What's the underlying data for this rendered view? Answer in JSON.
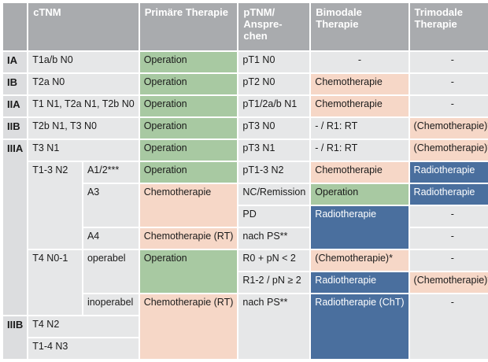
{
  "header": {
    "stage": "",
    "ctnm": "cTNM",
    "primary": "Primäre Therapie",
    "ptnm": "pTNM/ Anspre- chen",
    "bimodal": "Bimodale Therapie",
    "trimodal": "Trimodale Therapie"
  },
  "rows": {
    "ia": {
      "stage": "IA",
      "ctnm": "T1a/b N0",
      "primary": "Operation",
      "ptnm": "pT1 N0",
      "bimodal": "-",
      "trimodal": "-"
    },
    "ib": {
      "stage": "IB",
      "ctnm": "T2a N0",
      "primary": "Operation",
      "ptnm": "pT2 N0",
      "bimodal": "Chemotherapie",
      "trimodal": "-"
    },
    "iia": {
      "stage": "IIA",
      "ctnm": "T1 N1, T2a N1, T2b N0",
      "primary": "Operation",
      "ptnm": "pT1/2a/b N1",
      "bimodal": "Chemotherapie",
      "trimodal": "-"
    },
    "iib": {
      "stage": "IIB",
      "ctnm": "T2b N1, T3 N0",
      "primary": "Operation",
      "ptnm": "pT3 N0",
      "bimodal": "- / R1: RT",
      "trimodal": "(Chemotherapie)*"
    },
    "iiia": {
      "stage": "IIIA",
      "ctnm": "T3 N1",
      "primary": "Operation",
      "ptnm": "pT3 N1",
      "bimodal": "- / R1: RT",
      "trimodal": "(Chemotherapie)*"
    },
    "n2_a12": {
      "ctnm": "T1-3 N2",
      "sub": "A1/2***",
      "primary": "Operation",
      "ptnm": "pT1-3 N2",
      "bimodal": "Chemotherapie",
      "trimodal": "Radiotherapie"
    },
    "n2_a3_remission": {
      "sub": "A3",
      "primary": "Chemotherapie",
      "ptnm": "NC/Remission",
      "bimodal": "Operation",
      "trimodal": "Radiotherapie"
    },
    "n2_a3_pd": {
      "ptnm": "PD",
      "bimodal": "Radiotherapie",
      "trimodal": "-"
    },
    "n2_a4": {
      "sub": "A4",
      "primary": "Chemotherapie (RT)",
      "ptnm": "nach PS**",
      "bimodal": "Radiotherapie (ChT)",
      "trimodal": "-"
    },
    "t4_op_r0": {
      "ctnm": "T4 N0-1",
      "sub": "operabel",
      "primary": "Operation",
      "ptnm": "R0 + pN < 2",
      "bimodal": "(Chemotherapie)*",
      "trimodal": "-"
    },
    "t4_op_r1": {
      "ptnm": "R1-2 / pN ≥ 2",
      "bimodal": "Radiotherapie",
      "trimodal": "(Chemotherapie)*"
    },
    "t4_inop": {
      "sub": "inoperabel",
      "primary": "Chemotherapie (RT)",
      "ptnm": "nach PS**",
      "bimodal": "Radiotherapie (ChT)",
      "trimodal": "-"
    },
    "iiib_1": {
      "stage": "IIIB",
      "ctnm": "T4 N2"
    },
    "iiib_2": {
      "ctnm": "T1-4 N3"
    }
  },
  "colors": {
    "header": "#a9abae",
    "stage": "#dcdddf",
    "neutral": "#e6e7e8",
    "operation_green": "#a8c9a2",
    "chemo_peach": "#f6d7c7",
    "radio_blue": "#4a6f9e"
  }
}
